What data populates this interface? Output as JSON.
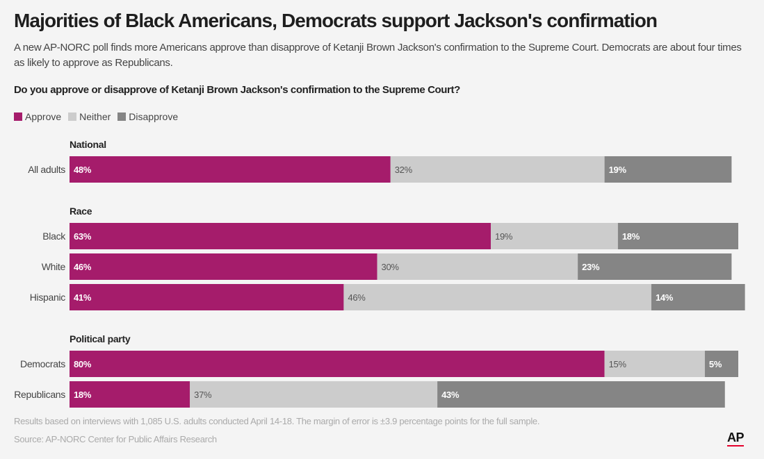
{
  "header": {
    "title": "Majorities of Black Americans, Democrats support Jackson's confirmation",
    "subtitle": "A new AP-NORC poll finds more Americans approve than disapprove of Ketanji Brown Jackson's confirmation to the Supreme Court. Democrats are about four times as likely to approve as Republicans.",
    "question": "Do you approve or disapprove of Ketanji Brown Jackson's confirmation to the Supreme Court?"
  },
  "legend": [
    {
      "label": "Approve",
      "color": "#a51c6b"
    },
    {
      "label": "Neither",
      "color": "#cccccc"
    },
    {
      "label": "Disapprove",
      "color": "#858585"
    }
  ],
  "footer": {
    "note": "Results based on interviews with 1,085 U.S. adults conducted April 14-18. The margin of error is ±3.9 percentage points for the full sample.",
    "source": "Source: AP-NORC Center for Public Affairs Research",
    "logo": "AP"
  },
  "chart_data": {
    "type": "bar",
    "orientation": "horizontal",
    "stacked": true,
    "unit": "%",
    "series": [
      {
        "name": "Approve",
        "color": "#a51c6b"
      },
      {
        "name": "Neither",
        "color": "#cccccc"
      },
      {
        "name": "Disapprove",
        "color": "#858585"
      }
    ],
    "groups": [
      {
        "label": "National",
        "rows": [
          {
            "category": "All adults",
            "values": [
              48,
              32,
              19
            ]
          }
        ]
      },
      {
        "label": "Race",
        "rows": [
          {
            "category": "Black",
            "values": [
              63,
              19,
              18
            ]
          },
          {
            "category": "White",
            "values": [
              46,
              30,
              23
            ]
          },
          {
            "category": "Hispanic",
            "values": [
              41,
              46,
              14
            ]
          }
        ]
      },
      {
        "label": "Political party",
        "rows": [
          {
            "category": "Democrats",
            "values": [
              80,
              15,
              5
            ]
          },
          {
            "category": "Republicans",
            "values": [
              18,
              37,
              43
            ]
          }
        ]
      }
    ]
  }
}
